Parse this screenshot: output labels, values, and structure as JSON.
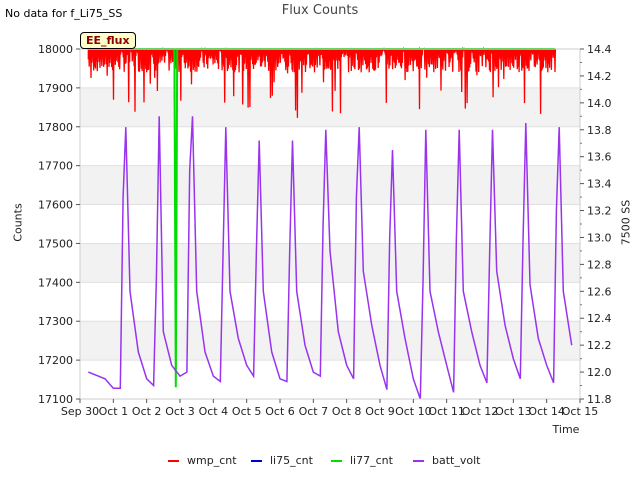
{
  "page": {
    "status_note": "No data for f_Li75_SS"
  },
  "chart_data": {
    "type": "line",
    "title": "Flux Counts",
    "xlabel": "Time",
    "ylabel": "Counts",
    "y2label": "7500 SS",
    "badge": "EE_flux",
    "ylim": [
      17100,
      18000
    ],
    "y2lim": [
      11.8,
      14.4
    ],
    "xlim_days": [
      0,
      15
    ],
    "x_ticks": [
      "Sep 30",
      "Oct 1",
      "Oct 2",
      "Oct 3",
      "Oct 4",
      "Oct 5",
      "Oct 6",
      "Oct 7",
      "Oct 8",
      "Oct 9",
      "Oct 10",
      "Oct 11",
      "Oct 12",
      "Oct 13",
      "Oct 14",
      "Oct 15"
    ],
    "y_ticks": [
      17100,
      17200,
      17300,
      17400,
      17500,
      17600,
      17700,
      17800,
      17900,
      18000
    ],
    "y2_ticks": [
      "11.8",
      "12.0",
      "12.2",
      "12.4",
      "12.6",
      "12.8",
      "13.0",
      "13.2",
      "13.4",
      "13.6",
      "13.8",
      "14.0",
      "14.2",
      "14.4"
    ],
    "grid": true,
    "legend_position": "bottom",
    "series": [
      {
        "name": "wmp_cnt",
        "color": "#ff0000",
        "axis": "left",
        "x": [
          "Sep 30 06:00",
          "Oct 14 06:00"
        ],
        "y": [
          18000,
          18000
        ],
        "range": [
          17820,
          18000
        ],
        "typical_low": 17940
      },
      {
        "name": "li75_cnt",
        "color": "#0000cc",
        "axis": "left",
        "x": [],
        "y": []
      },
      {
        "name": "li77_cnt",
        "color": "#00dd00",
        "axis": "left",
        "x": [
          "Sep 30 06:00",
          "Oct 2 20:00",
          "Oct 2 21:00",
          "Oct 2 22:00",
          "Oct 14 06:00"
        ],
        "y": [
          18000,
          18000,
          17130,
          18000,
          18000
        ]
      },
      {
        "name": "batt_volt",
        "color": "#9933ee",
        "axis": "right",
        "x": [
          "Sep 30 06:00",
          "Sep 30 18:00",
          "Oct 1 00:00",
          "Oct 1 05:00",
          "Oct 1 07:00",
          "Oct 1 09:00",
          "Oct 1 12:00",
          "Oct 1 18:00",
          "Oct 2 00:00",
          "Oct 2 05:00",
          "Oct 2 07:00",
          "Oct 2 09:00",
          "Oct 2 12:00",
          "Oct 2 18:00",
          "Oct 3 00:00",
          "Oct 3 05:00",
          "Oct 3 07:00",
          "Oct 3 09:00",
          "Oct 3 12:00",
          "Oct 3 18:00",
          "Oct 4 00:00",
          "Oct 4 05:00",
          "Oct 4 07:00",
          "Oct 4 09:00",
          "Oct 4 12:00",
          "Oct 4 18:00",
          "Oct 5 00:00",
          "Oct 5 05:00",
          "Oct 5 07:00",
          "Oct 5 09:00",
          "Oct 5 12:00",
          "Oct 5 18:00",
          "Oct 6 00:00",
          "Oct 6 05:00",
          "Oct 6 07:00",
          "Oct 6 09:00",
          "Oct 6 12:00",
          "Oct 6 18:00",
          "Oct 7 00:00",
          "Oct 7 05:00",
          "Oct 7 07:00",
          "Oct 7 09:00",
          "Oct 7 12:00",
          "Oct 7 18:00",
          "Oct 8 00:00",
          "Oct 8 05:00",
          "Oct 8 07:00",
          "Oct 8 09:00",
          "Oct 8 12:00",
          "Oct 8 18:00",
          "Oct 9 00:00",
          "Oct 9 05:00",
          "Oct 9 07:00",
          "Oct 9 09:00",
          "Oct 9 12:00",
          "Oct 9 18:00",
          "Oct 10 00:00",
          "Oct 10 05:00",
          "Oct 10 07:00",
          "Oct 10 09:00",
          "Oct 10 12:00",
          "Oct 10 18:00",
          "Oct 11 00:00",
          "Oct 11 05:00",
          "Oct 11 07:00",
          "Oct 11 09:00",
          "Oct 11 12:00",
          "Oct 11 18:00",
          "Oct 12 00:00",
          "Oct 12 05:00",
          "Oct 12 07:00",
          "Oct 12 09:00",
          "Oct 12 12:00",
          "Oct 12 18:00",
          "Oct 13 00:00",
          "Oct 13 05:00",
          "Oct 13 07:00",
          "Oct 13 09:00",
          "Oct 13 12:00",
          "Oct 13 18:00",
          "Oct 14 00:00",
          "Oct 14 05:00",
          "Oct 14 07:00",
          "Oct 14 09:00",
          "Oct 14 12:00",
          "Oct 14 18:00"
        ],
        "y": [
          12.0,
          11.95,
          11.88,
          11.88,
          13.3,
          13.82,
          12.6,
          12.15,
          11.95,
          11.9,
          12.7,
          13.9,
          12.3,
          12.05,
          11.97,
          12.0,
          13.5,
          13.9,
          12.6,
          12.15,
          11.97,
          11.93,
          12.9,
          13.82,
          12.6,
          12.25,
          12.05,
          11.97,
          12.9,
          13.72,
          12.6,
          12.15,
          11.95,
          11.93,
          12.9,
          13.72,
          12.6,
          12.2,
          12.0,
          11.97,
          13.1,
          13.8,
          12.9,
          12.3,
          12.05,
          11.95,
          13.3,
          13.82,
          12.75,
          12.35,
          12.05,
          11.87,
          13.0,
          13.65,
          12.6,
          12.25,
          11.95,
          11.8,
          12.7,
          13.8,
          12.6,
          12.3,
          12.05,
          11.85,
          13.0,
          13.8,
          12.6,
          12.3,
          12.05,
          11.92,
          12.9,
          13.8,
          12.75,
          12.35,
          12.1,
          11.95,
          13.0,
          13.85,
          12.65,
          12.25,
          12.05,
          11.92,
          13.2,
          13.82,
          12.6,
          12.2
        ]
      }
    ]
  }
}
